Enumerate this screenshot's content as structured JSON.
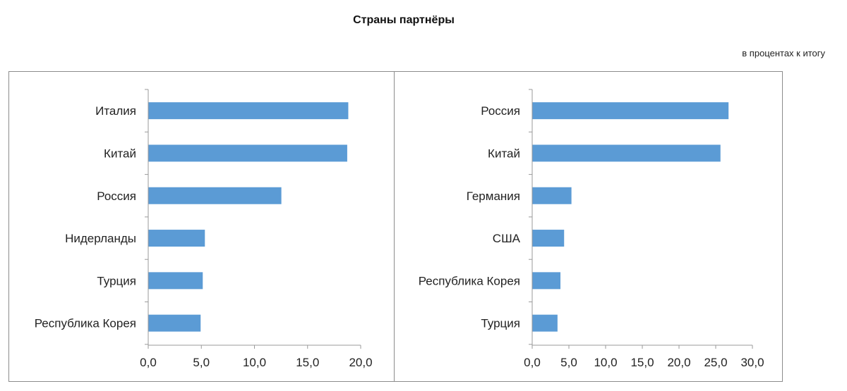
{
  "header": {
    "title": "Страны партнёры",
    "subtitle": "в процентах к итогу"
  },
  "chart_data": [
    {
      "type": "bar",
      "orientation": "horizontal",
      "categories": [
        "Италия",
        "Китай",
        "Россия",
        "Нидерланды",
        "Турция",
        "Республика Корея"
      ],
      "values": [
        18.8,
        18.7,
        12.5,
        5.3,
        5.1,
        4.9
      ],
      "xlim": [
        0,
        20
      ],
      "xticks": [
        "0,0",
        "5,0",
        "10,0",
        "15,0",
        "20,0"
      ],
      "color": "#5b9bd5"
    },
    {
      "type": "bar",
      "orientation": "horizontal",
      "categories": [
        "Россия",
        "Китай",
        "Германия",
        "США",
        "Республика Корея",
        "Турция"
      ],
      "values": [
        26.7,
        25.6,
        5.3,
        4.3,
        3.8,
        3.4
      ],
      "xlim": [
        0,
        30
      ],
      "xticks": [
        "0,0",
        "5,0",
        "10,0",
        "15,0",
        "20,0",
        "25,0",
        "30,0"
      ],
      "color": "#5b9bd5"
    }
  ]
}
